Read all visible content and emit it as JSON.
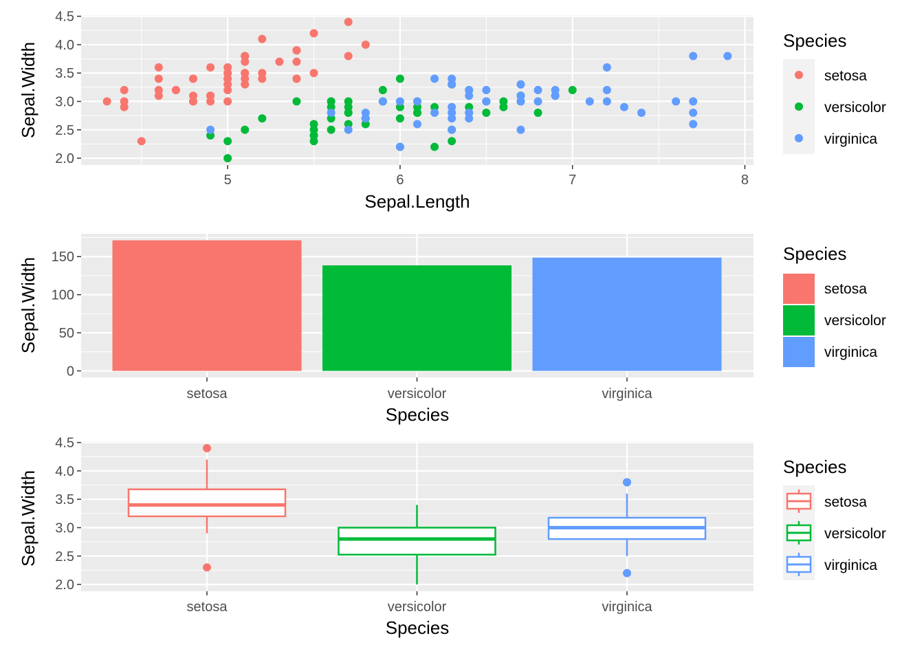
{
  "colors": {
    "setosa": "#F8766D",
    "versicolor": "#00BA38",
    "virginica": "#619CFF",
    "panel": "#EBEBEB",
    "grid_major": "#FFFFFF",
    "tick_text": "#4D4D4D"
  },
  "chart_data": [
    {
      "type": "scatter",
      "title": "",
      "xlabel": "Sepal.Length",
      "ylabel": "Sepal.Width",
      "xlim": [
        4.15,
        8.05
      ],
      "ylim": [
        1.88,
        4.52
      ],
      "x_ticks": [
        5,
        6,
        7,
        8
      ],
      "x_tick_labels": [
        "5",
        "6",
        "7",
        "8"
      ],
      "y_ticks": [
        2.0,
        2.5,
        3.0,
        3.5,
        4.0,
        4.5
      ],
      "y_tick_labels": [
        "2.0",
        "2.5",
        "3.0",
        "3.5",
        "4.0",
        "4.5"
      ],
      "legend": {
        "title": "Species",
        "position": "right",
        "items": [
          "setosa",
          "versicolor",
          "virginica"
        ]
      },
      "series": [
        {
          "name": "setosa",
          "points": [
            [
              5.1,
              3.5
            ],
            [
              4.9,
              3.0
            ],
            [
              4.7,
              3.2
            ],
            [
              4.6,
              3.1
            ],
            [
              5.0,
              3.6
            ],
            [
              5.4,
              3.9
            ],
            [
              4.6,
              3.4
            ],
            [
              5.0,
              3.4
            ],
            [
              4.4,
              2.9
            ],
            [
              4.9,
              3.1
            ],
            [
              5.4,
              3.7
            ],
            [
              4.8,
              3.4
            ],
            [
              4.8,
              3.0
            ],
            [
              4.3,
              3.0
            ],
            [
              5.8,
              4.0
            ],
            [
              5.7,
              4.4
            ],
            [
              5.4,
              3.9
            ],
            [
              5.1,
              3.5
            ],
            [
              5.7,
              3.8
            ],
            [
              5.1,
              3.8
            ],
            [
              5.4,
              3.4
            ],
            [
              5.1,
              3.7
            ],
            [
              4.6,
              3.6
            ],
            [
              5.1,
              3.3
            ],
            [
              4.8,
              3.4
            ],
            [
              5.0,
              3.0
            ],
            [
              5.0,
              3.4
            ],
            [
              5.2,
              3.5
            ],
            [
              5.2,
              3.4
            ],
            [
              4.7,
              3.2
            ],
            [
              4.8,
              3.1
            ],
            [
              5.4,
              3.4
            ],
            [
              5.2,
              4.1
            ],
            [
              5.5,
              4.2
            ],
            [
              4.9,
              3.1
            ],
            [
              5.0,
              3.2
            ],
            [
              5.5,
              3.5
            ],
            [
              4.9,
              3.6
            ],
            [
              4.4,
              3.0
            ],
            [
              5.1,
              3.4
            ],
            [
              5.0,
              3.5
            ],
            [
              4.5,
              2.3
            ],
            [
              4.4,
              3.2
            ],
            [
              5.0,
              3.5
            ],
            [
              5.1,
              3.8
            ],
            [
              4.8,
              3.0
            ],
            [
              5.1,
              3.8
            ],
            [
              4.6,
              3.2
            ],
            [
              5.3,
              3.7
            ],
            [
              5.0,
              3.3
            ]
          ]
        },
        {
          "name": "versicolor",
          "points": [
            [
              7.0,
              3.2
            ],
            [
              6.4,
              3.2
            ],
            [
              6.9,
              3.1
            ],
            [
              5.5,
              2.3
            ],
            [
              6.5,
              2.8
            ],
            [
              5.7,
              2.8
            ],
            [
              6.3,
              3.3
            ],
            [
              4.9,
              2.4
            ],
            [
              6.6,
              2.9
            ],
            [
              5.2,
              2.7
            ],
            [
              5.0,
              2.0
            ],
            [
              5.9,
              3.0
            ],
            [
              6.0,
              2.2
            ],
            [
              6.1,
              2.9
            ],
            [
              5.6,
              2.9
            ],
            [
              6.7,
              3.1
            ],
            [
              5.6,
              3.0
            ],
            [
              5.8,
              2.7
            ],
            [
              6.2,
              2.2
            ],
            [
              5.6,
              2.5
            ],
            [
              5.9,
              3.2
            ],
            [
              6.1,
              2.8
            ],
            [
              6.3,
              2.5
            ],
            [
              6.1,
              2.8
            ],
            [
              6.4,
              2.9
            ],
            [
              6.6,
              3.0
            ],
            [
              6.8,
              2.8
            ],
            [
              6.7,
              3.0
            ],
            [
              6.0,
              2.9
            ],
            [
              5.7,
              2.6
            ],
            [
              5.5,
              2.4
            ],
            [
              5.5,
              2.4
            ],
            [
              5.8,
              2.7
            ],
            [
              6.0,
              2.7
            ],
            [
              5.4,
              3.0
            ],
            [
              6.0,
              3.4
            ],
            [
              6.7,
              3.1
            ],
            [
              6.3,
              2.3
            ],
            [
              5.6,
              3.0
            ],
            [
              5.5,
              2.5
            ],
            [
              5.5,
              2.6
            ],
            [
              6.1,
              3.0
            ],
            [
              5.8,
              2.6
            ],
            [
              5.0,
              2.3
            ],
            [
              5.6,
              2.7
            ],
            [
              5.7,
              3.0
            ],
            [
              5.7,
              2.9
            ],
            [
              6.2,
              2.9
            ],
            [
              5.1,
              2.5
            ],
            [
              5.7,
              2.8
            ]
          ]
        },
        {
          "name": "virginica",
          "points": [
            [
              6.3,
              3.3
            ],
            [
              5.8,
              2.7
            ],
            [
              7.1,
              3.0
            ],
            [
              6.3,
              2.9
            ],
            [
              6.5,
              3.0
            ],
            [
              7.6,
              3.0
            ],
            [
              4.9,
              2.5
            ],
            [
              7.3,
              2.9
            ],
            [
              6.7,
              2.5
            ],
            [
              7.2,
              3.6
            ],
            [
              6.5,
              3.2
            ],
            [
              6.4,
              2.7
            ],
            [
              6.8,
              3.0
            ],
            [
              5.7,
              2.5
            ],
            [
              5.8,
              2.8
            ],
            [
              6.4,
              3.2
            ],
            [
              6.5,
              3.0
            ],
            [
              7.7,
              3.8
            ],
            [
              7.7,
              2.6
            ],
            [
              6.0,
              2.2
            ],
            [
              6.9,
              3.2
            ],
            [
              5.6,
              2.8
            ],
            [
              7.7,
              2.8
            ],
            [
              6.3,
              2.7
            ],
            [
              6.7,
              3.3
            ],
            [
              7.2,
              3.2
            ],
            [
              6.2,
              2.8
            ],
            [
              6.1,
              3.0
            ],
            [
              6.4,
              2.8
            ],
            [
              7.2,
              3.0
            ],
            [
              7.4,
              2.8
            ],
            [
              7.9,
              3.8
            ],
            [
              6.4,
              2.8
            ],
            [
              6.3,
              2.8
            ],
            [
              6.1,
              2.6
            ],
            [
              7.7,
              3.0
            ],
            [
              6.3,
              3.4
            ],
            [
              6.4,
              3.1
            ],
            [
              6.0,
              3.0
            ],
            [
              6.9,
              3.1
            ],
            [
              6.7,
              3.1
            ],
            [
              6.9,
              3.1
            ],
            [
              5.8,
              2.7
            ],
            [
              6.8,
              3.2
            ],
            [
              6.7,
              3.3
            ],
            [
              6.7,
              3.0
            ],
            [
              6.3,
              2.5
            ],
            [
              6.5,
              3.0
            ],
            [
              6.2,
              3.4
            ],
            [
              5.9,
              3.0
            ]
          ]
        }
      ]
    },
    {
      "type": "bar",
      "title": "",
      "xlabel": "Species",
      "ylabel": "Sepal.Width",
      "categories": [
        "setosa",
        "versicolor",
        "virginica"
      ],
      "values": [
        171.4,
        138.5,
        148.7
      ],
      "ylim": [
        -8.6,
        180.0
      ],
      "y_ticks": [
        0,
        50,
        100,
        150
      ],
      "y_tick_labels": [
        "0",
        "50",
        "100",
        "150"
      ],
      "legend": {
        "title": "Species",
        "position": "right",
        "items": [
          "setosa",
          "versicolor",
          "virginica"
        ]
      }
    },
    {
      "type": "box",
      "title": "",
      "xlabel": "Species",
      "ylabel": "Sepal.Width",
      "categories": [
        "setosa",
        "versicolor",
        "virginica"
      ],
      "ylim": [
        1.88,
        4.52
      ],
      "y_ticks": [
        2.0,
        2.5,
        3.0,
        3.5,
        4.0,
        4.5
      ],
      "y_tick_labels": [
        "2.0",
        "2.5",
        "3.0",
        "3.5",
        "4.0",
        "4.5"
      ],
      "boxes": [
        {
          "name": "setosa",
          "lower_whisker": 2.9,
          "q1": 3.2,
          "median": 3.4,
          "q3": 3.675,
          "upper_whisker": 4.2,
          "outliers": [
            4.4,
            2.3
          ]
        },
        {
          "name": "versicolor",
          "lower_whisker": 2.0,
          "q1": 2.525,
          "median": 2.8,
          "q3": 3.0,
          "upper_whisker": 3.4,
          "outliers": []
        },
        {
          "name": "virginica",
          "lower_whisker": 2.5,
          "q1": 2.8,
          "median": 3.0,
          "q3": 3.175,
          "upper_whisker": 3.6,
          "outliers": [
            3.8,
            3.8,
            2.2
          ]
        }
      ],
      "legend": {
        "title": "Species",
        "position": "right",
        "items": [
          "setosa",
          "versicolor",
          "virginica"
        ]
      }
    }
  ]
}
